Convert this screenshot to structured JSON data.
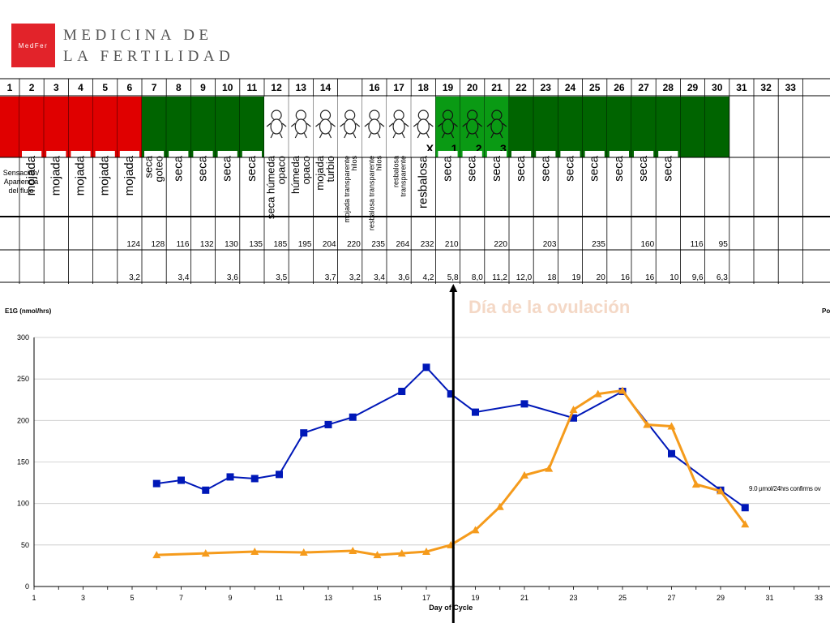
{
  "header": {
    "logo_text": "MedFer",
    "brand_line1": "MEDICINA DE",
    "brand_line2": "LA FERTILIDAD"
  },
  "colors": {
    "menstrual": "#e00000",
    "dry": "#006400",
    "fertile": "#ffffff",
    "peak_days": "#0a9a14",
    "e1g_line": "#0018b8",
    "pdg_line": "#f59b1c"
  },
  "cycle_grid": {
    "row_label": "Sensación/ Apariencia del flujo",
    "days": [
      {
        "day": "1",
        "color": "menstrual",
        "sign": "",
        "e1g": "",
        "pdg": ""
      },
      {
        "day": "2",
        "color": "menstrual",
        "sign": "mojada",
        "e1g": "",
        "pdg": ""
      },
      {
        "day": "3",
        "color": "menstrual",
        "sign": "mojada",
        "e1g": "",
        "pdg": ""
      },
      {
        "day": "4",
        "color": "menstrual",
        "sign": "mojada",
        "e1g": "",
        "pdg": ""
      },
      {
        "day": "5",
        "color": "menstrual",
        "sign": "mojada",
        "e1g": "",
        "pdg": ""
      },
      {
        "day": "6",
        "color": "menstrual",
        "sign": "mojada",
        "e1g": "124",
        "pdg": "3,2"
      },
      {
        "day": "7",
        "color": "dry",
        "sign": "seca goteo",
        "e1g": "128",
        "pdg": ""
      },
      {
        "day": "8",
        "color": "dry",
        "sign": "seca",
        "e1g": "116",
        "pdg": "3,4"
      },
      {
        "day": "9",
        "color": "dry",
        "sign": "seca",
        "e1g": "132",
        "pdg": ""
      },
      {
        "day": "10",
        "color": "dry",
        "sign": "seca",
        "e1g": "130",
        "pdg": "3,6"
      },
      {
        "day": "11",
        "color": "dry",
        "sign": "seca",
        "e1g": "135",
        "pdg": ""
      },
      {
        "day": "12",
        "color": "fertile",
        "sign": "seca húmeda opaco",
        "e1g": "185",
        "pdg": "3,5"
      },
      {
        "day": "13",
        "color": "fertile",
        "sign": "húmeda opaco",
        "e1g": "195",
        "pdg": ""
      },
      {
        "day": "14",
        "color": "fertile",
        "sign": "mojada turbio",
        "e1g": "204",
        "pdg": "3,7"
      },
      {
        "day": "",
        "color": "fertile",
        "sign": "mojada transparente hilos",
        "e1g": "220",
        "pdg": "3,2"
      },
      {
        "day": "16",
        "color": "fertile",
        "sign": "resbalosa transparente hilos",
        "e1g": "235",
        "pdg": "3,4"
      },
      {
        "day": "17",
        "color": "fertile",
        "sign": "resbalosa transparente",
        "e1g": "264",
        "pdg": "3,6"
      },
      {
        "day": "18",
        "color": "fertile",
        "sign": "resbalosa",
        "e1g": "232",
        "pdg": "4,2",
        "mark": "X"
      },
      {
        "day": "19",
        "color": "peak_days",
        "sign": "seca",
        "e1g": "210",
        "pdg": "5,8",
        "mark": "1"
      },
      {
        "day": "20",
        "color": "peak_days",
        "sign": "seca",
        "e1g": "",
        "pdg": "8,0",
        "mark": "2"
      },
      {
        "day": "21",
        "color": "peak_days",
        "sign": "seca",
        "e1g": "220",
        "pdg": "11,2",
        "mark": "3"
      },
      {
        "day": "22",
        "color": "dry",
        "sign": "seca",
        "e1g": "",
        "pdg": "12,0"
      },
      {
        "day": "23",
        "color": "dry",
        "sign": "seca",
        "e1g": "203",
        "pdg": "18"
      },
      {
        "day": "24",
        "color": "dry",
        "sign": "seca",
        "e1g": "",
        "pdg": "19"
      },
      {
        "day": "25",
        "color": "dry",
        "sign": "seca",
        "e1g": "235",
        "pdg": "20"
      },
      {
        "day": "26",
        "color": "dry",
        "sign": "seca",
        "e1g": "",
        "pdg": "16"
      },
      {
        "day": "27",
        "color": "dry",
        "sign": "seca",
        "e1g": "160",
        "pdg": "16"
      },
      {
        "day": "28",
        "color": "dry",
        "sign": "seca",
        "e1g": "",
        "pdg": "10"
      },
      {
        "day": "29",
        "color": "dry",
        "sign": "",
        "e1g": "116",
        "pdg": "9,6"
      },
      {
        "day": "30",
        "color": "dry",
        "sign": "",
        "e1g": "95",
        "pdg": "6,3"
      },
      {
        "day": "31",
        "color": "",
        "sign": "",
        "e1g": "",
        "pdg": ""
      },
      {
        "day": "32",
        "color": "",
        "sign": "",
        "e1g": "",
        "pdg": ""
      },
      {
        "day": "33",
        "color": "",
        "sign": "",
        "e1g": "",
        "pdg": ""
      }
    ]
  },
  "chart_data": {
    "type": "line",
    "title": "",
    "ylabel": "E1G (nmol/hrs)",
    "ylabel_right": "Po",
    "xlabel": "Day of Cycle",
    "ylim": [
      0,
      300
    ],
    "xlim": [
      1,
      33
    ],
    "yticks": [
      0,
      50,
      100,
      150,
      200,
      250,
      300
    ],
    "xticks": [
      1,
      3,
      5,
      7,
      9,
      11,
      13,
      15,
      17,
      19,
      21,
      23,
      25,
      27,
      29,
      31,
      33
    ],
    "grid": true,
    "series": [
      {
        "color": "e1g_line",
        "marker": "square",
        "x": [
          6,
          7,
          8,
          9,
          10,
          11,
          12,
          13,
          14,
          16,
          17,
          18,
          19,
          21,
          23,
          25,
          27,
          29,
          30
        ],
        "y": [
          124,
          128,
          116,
          132,
          130,
          135,
          185,
          195,
          204,
          235,
          264,
          232,
          210,
          220,
          203,
          235,
          160,
          116,
          95
        ]
      },
      {
        "color": "pdg_line",
        "marker": "triangle",
        "x": [
          6,
          8,
          10,
          12,
          14,
          15,
          16,
          17,
          18,
          19,
          20,
          21,
          22,
          23,
          24,
          25,
          26,
          27,
          28,
          29,
          30
        ],
        "y": [
          38,
          40,
          42,
          41,
          43,
          38,
          40,
          42,
          50,
          68,
          96,
          134,
          142,
          213,
          232,
          236,
          195,
          193,
          123,
          115,
          75
        ]
      }
    ],
    "annotations": [
      {
        "text": "Día de la ovulación",
        "x": 18,
        "y": 335
      },
      {
        "text": "9.0 μmol/24hrs confirms ov",
        "x": 30,
        "y": 118
      }
    ],
    "vertical_marker_x": 18.1
  }
}
